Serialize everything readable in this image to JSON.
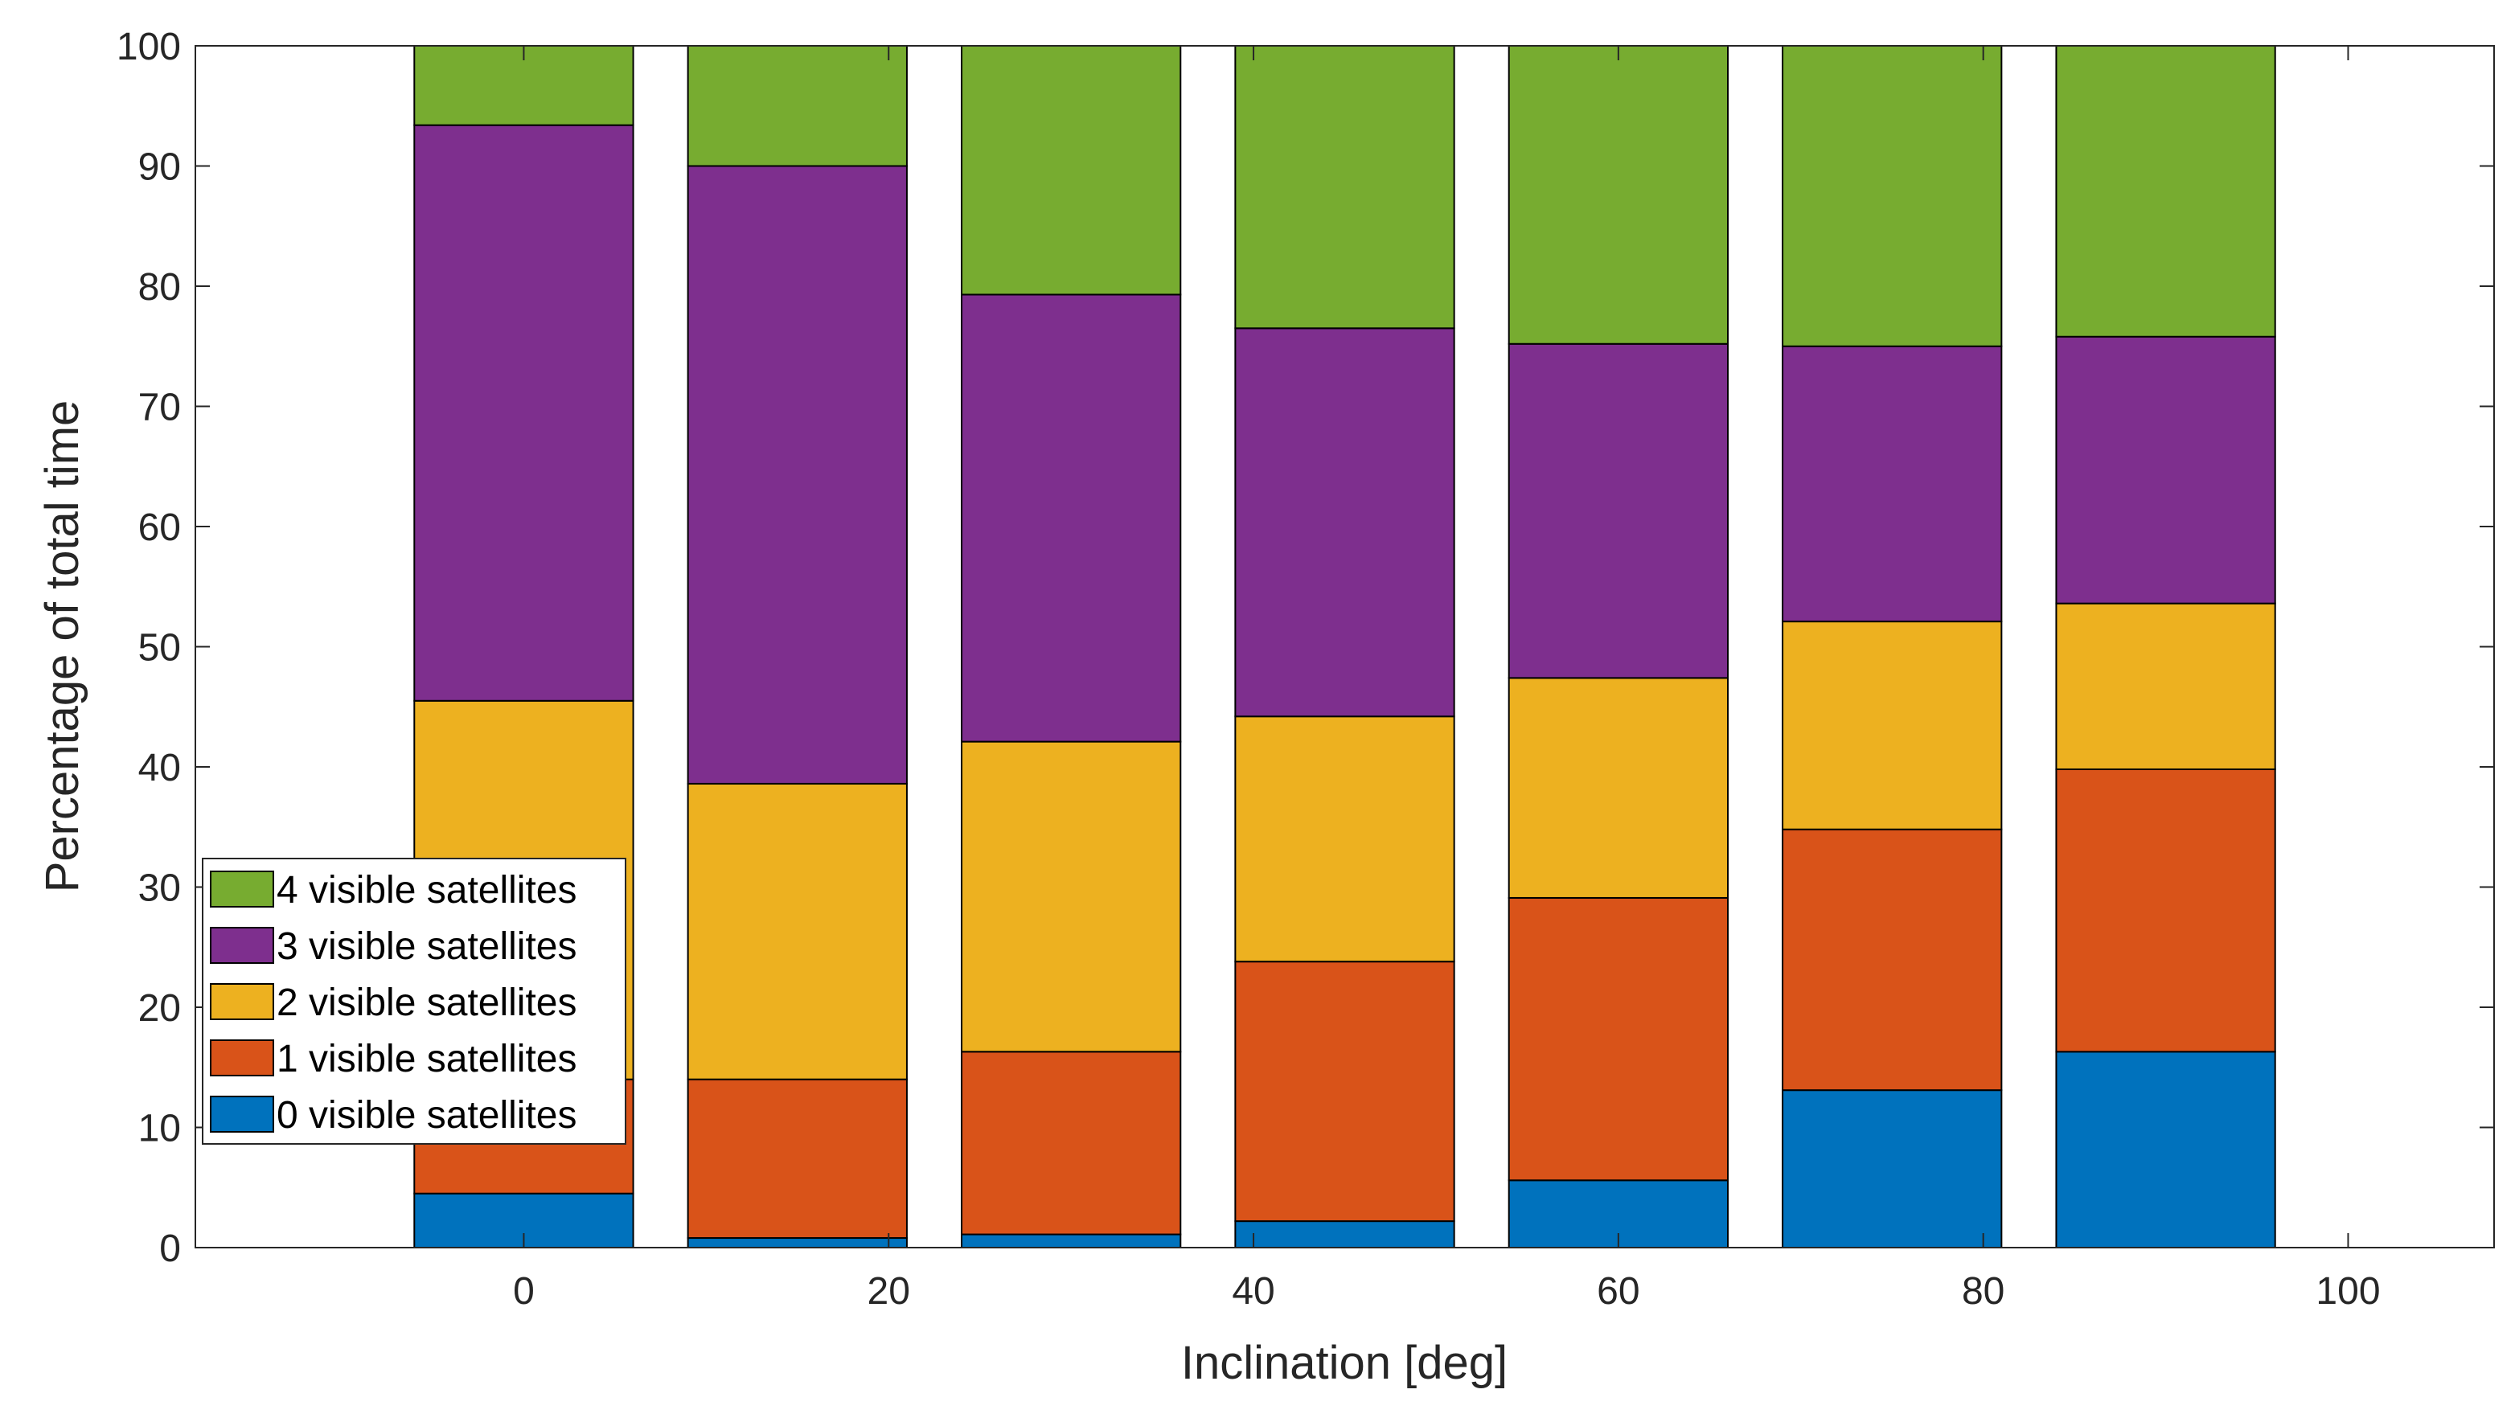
{
  "chart_data": {
    "type": "bar",
    "stacked": true,
    "x": [
      0,
      15,
      30,
      45,
      60,
      75,
      90
    ],
    "xlabel": "Inclination [deg]",
    "ylabel": "Percentage of total time",
    "xlim": [
      -18,
      108
    ],
    "ylim": [
      0,
      100
    ],
    "xticks": [
      0,
      20,
      40,
      60,
      80,
      100
    ],
    "yticks": [
      0,
      10,
      20,
      30,
      40,
      50,
      60,
      70,
      80,
      90,
      100
    ],
    "grid": false,
    "legend_position": "bottom-left",
    "series": [
      {
        "name": "0 visible satellites",
        "color": "#0072BD",
        "values": [
          4.5,
          0.8,
          1.1,
          2.2,
          5.6,
          13.1,
          16.3
        ]
      },
      {
        "name": "1 visible satellites",
        "color": "#D95319",
        "values": [
          9.5,
          13.2,
          15.2,
          21.6,
          23.5,
          21.7,
          23.5
        ]
      },
      {
        "name": "2 visible satellites",
        "color": "#EDB120",
        "values": [
          31.5,
          24.6,
          25.8,
          20.4,
          18.3,
          17.3,
          13.8
        ]
      },
      {
        "name": "3 visible satellites",
        "color": "#7E2F8E",
        "values": [
          47.9,
          51.4,
          37.2,
          32.3,
          27.8,
          22.9,
          22.2
        ]
      },
      {
        "name": "4 visible satellites",
        "color": "#77AC30",
        "values": [
          6.6,
          10.0,
          20.7,
          23.5,
          24.8,
          25.0,
          24.2
        ]
      }
    ]
  }
}
